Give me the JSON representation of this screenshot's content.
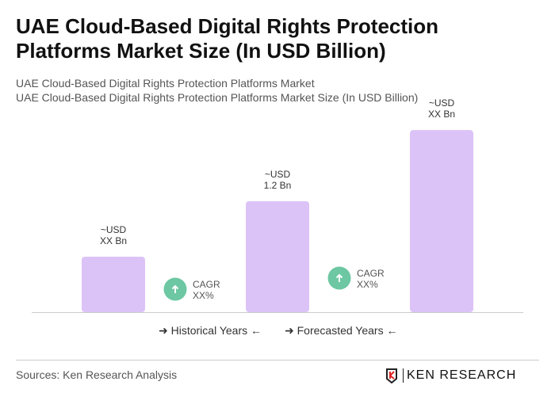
{
  "title": "UAE Cloud-Based Digital Rights Protection Platforms Market Size (In USD Billion)",
  "subtitle1": "UAE Cloud-Based Digital Rights Protection Platforms Market",
  "subtitle2": "UAE Cloud-Based Digital Rights Protection Platforms Market Size (In USD Billion)",
  "chart_data": {
    "type": "bar",
    "values": [
      0.6,
      1.2,
      1.97
    ],
    "data_labels": [
      [
        "~USD",
        "XX Bn"
      ],
      [
        "~USD",
        "1.2 Bn"
      ],
      [
        "~USD",
        "XX Bn"
      ]
    ],
    "bar_color": "#dcc3f7",
    "cagr": [
      {
        "label": "CAGR",
        "value": "XX%"
      },
      {
        "label": "CAGR",
        "value": "XX%"
      }
    ],
    "cagr_color": "#6cc7a2",
    "grid": false
  },
  "legend": {
    "historical": "Historical Years",
    "forecasted": "Forecasted Years"
  },
  "sources": "Sources: Ken Research Analysis",
  "logo_text": "KEN RESEARCH"
}
